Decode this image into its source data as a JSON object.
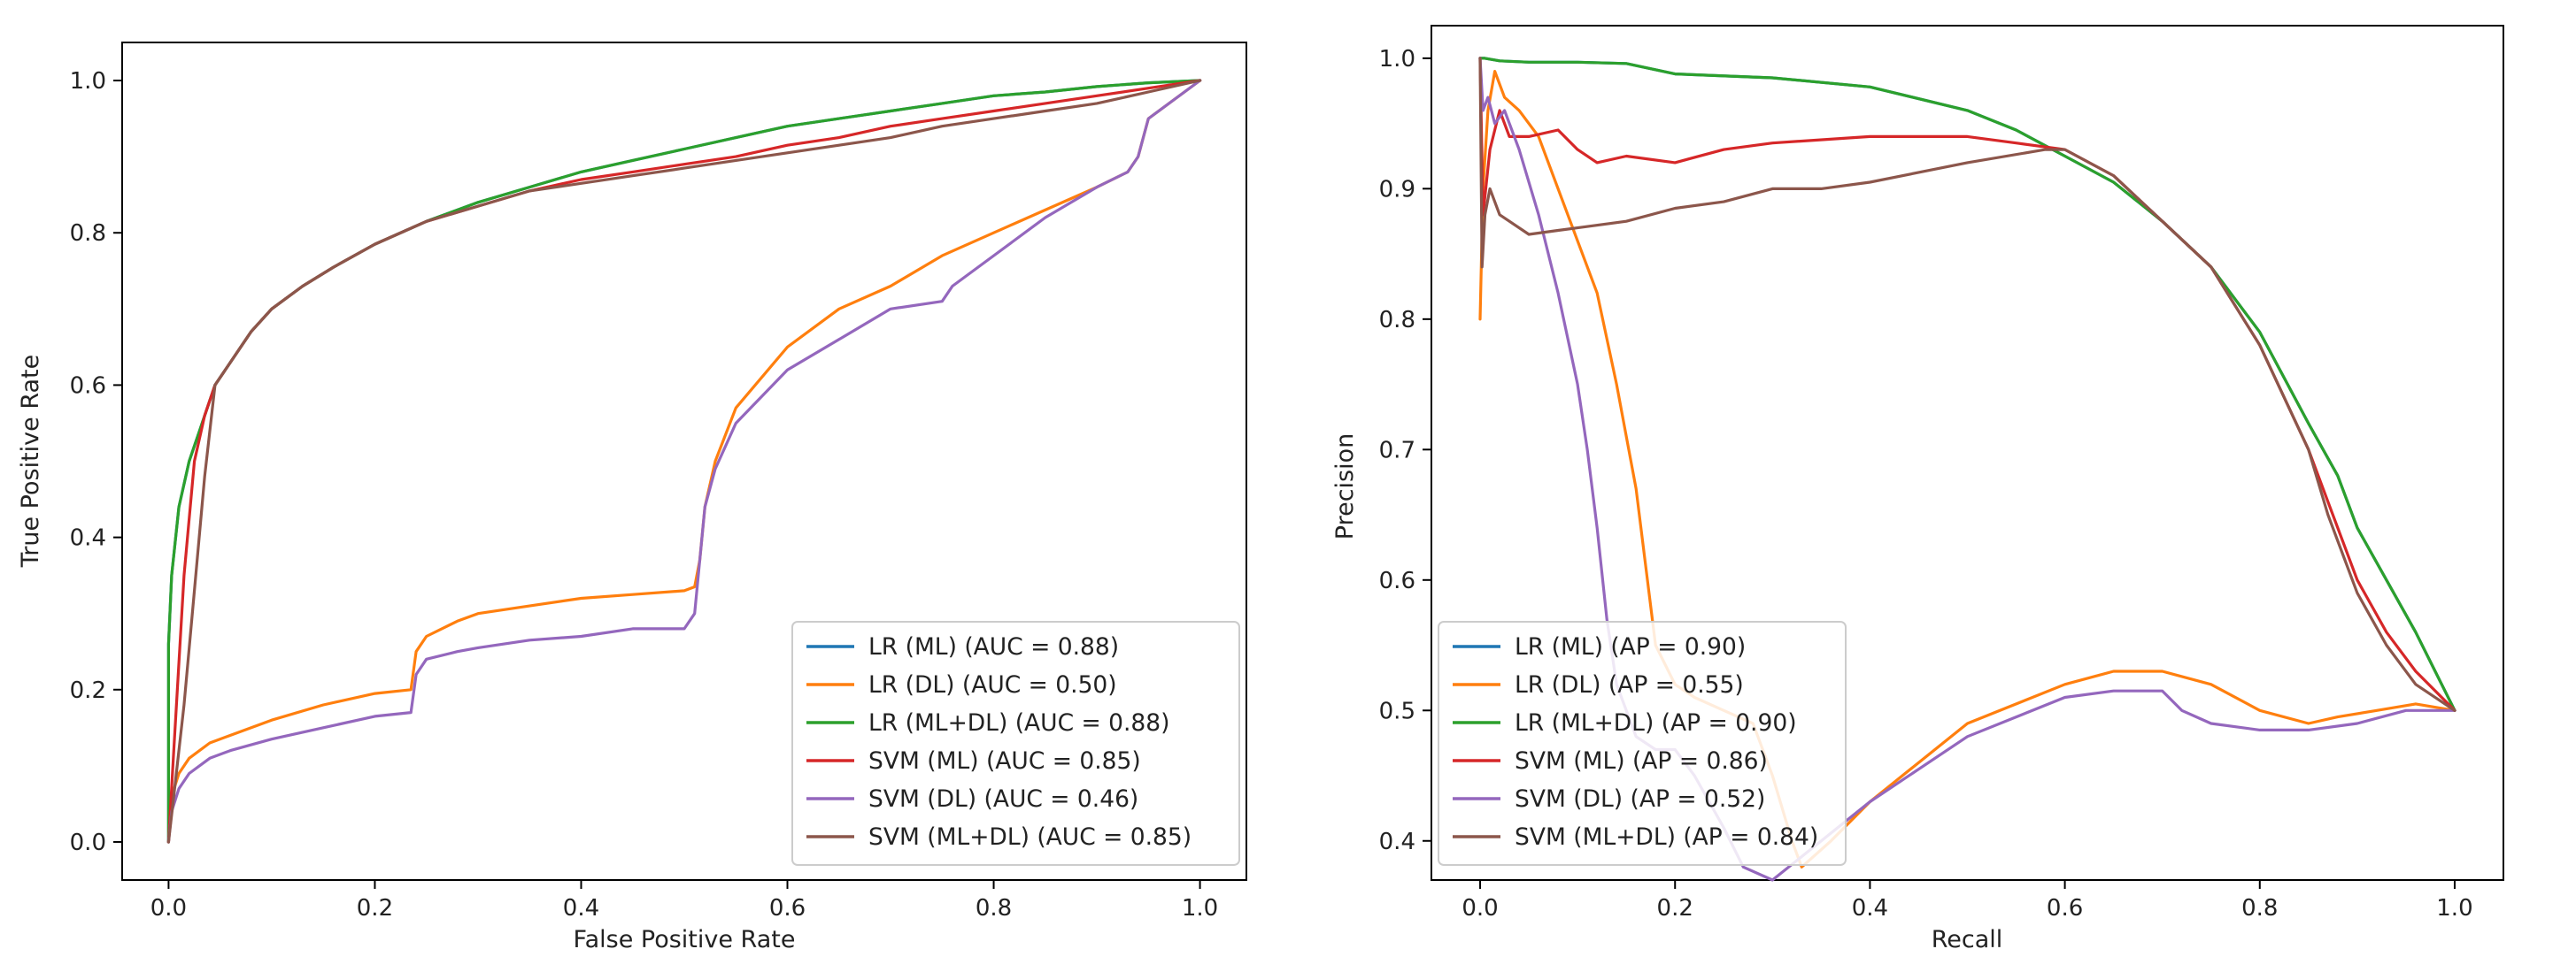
{
  "chart_data": [
    {
      "type": "line",
      "title": "",
      "xlabel": "False Positive Rate",
      "ylabel": "True Positive Rate",
      "xlim": [
        -0.045,
        1.045
      ],
      "ylim": [
        -0.05,
        1.05
      ],
      "xticks": [
        0.0,
        0.2,
        0.4,
        0.6,
        0.8,
        1.0
      ],
      "yticks": [
        0.0,
        0.2,
        0.4,
        0.6,
        0.8,
        1.0
      ],
      "xtick_labels": [
        "0.0",
        "0.2",
        "0.4",
        "0.6",
        "0.8",
        "1.0"
      ],
      "ytick_labels": [
        "0.0",
        "0.2",
        "0.4",
        "0.6",
        "0.8",
        "1.0"
      ],
      "grid": false,
      "legend_position": "lower-right",
      "series": [
        {
          "name": "LR (ML) (AUC = 0.88)",
          "color": "#1f77b4",
          "x": [
            0,
            0,
            0.003,
            0.01,
            0.02,
            0.03,
            0.045,
            0.06,
            0.08,
            0.1,
            0.13,
            0.16,
            0.2,
            0.25,
            0.3,
            0.35,
            0.4,
            0.45,
            0.5,
            0.55,
            0.6,
            0.65,
            0.7,
            0.75,
            0.8,
            0.85,
            0.9,
            0.95,
            1.0
          ],
          "y": [
            0,
            0.26,
            0.35,
            0.44,
            0.5,
            0.54,
            0.6,
            0.63,
            0.67,
            0.7,
            0.73,
            0.755,
            0.785,
            0.815,
            0.84,
            0.86,
            0.88,
            0.895,
            0.91,
            0.925,
            0.94,
            0.95,
            0.96,
            0.97,
            0.98,
            0.985,
            0.992,
            0.997,
            1.0
          ]
        },
        {
          "name": "LR (DL) (AUC = 0.50)",
          "color": "#ff7f0e",
          "x": [
            0,
            0.003,
            0.01,
            0.02,
            0.04,
            0.06,
            0.1,
            0.15,
            0.2,
            0.235,
            0.24,
            0.25,
            0.28,
            0.3,
            0.35,
            0.4,
            0.45,
            0.5,
            0.51,
            0.515,
            0.52,
            0.53,
            0.55,
            0.6,
            0.65,
            0.7,
            0.75,
            0.8,
            0.85,
            0.9,
            0.93,
            0.94,
            0.95,
            1.0
          ],
          "y": [
            0,
            0.06,
            0.09,
            0.11,
            0.13,
            0.14,
            0.16,
            0.18,
            0.195,
            0.2,
            0.25,
            0.27,
            0.29,
            0.3,
            0.31,
            0.32,
            0.325,
            0.33,
            0.335,
            0.37,
            0.44,
            0.5,
            0.57,
            0.65,
            0.7,
            0.73,
            0.77,
            0.8,
            0.83,
            0.86,
            0.88,
            0.9,
            0.95,
            1.0
          ]
        },
        {
          "name": "LR (ML+DL) (AUC = 0.88)",
          "color": "#2ca02c",
          "x": [
            0,
            0,
            0.003,
            0.01,
            0.02,
            0.03,
            0.045,
            0.06,
            0.08,
            0.1,
            0.13,
            0.16,
            0.2,
            0.25,
            0.3,
            0.35,
            0.4,
            0.45,
            0.5,
            0.55,
            0.6,
            0.65,
            0.7,
            0.75,
            0.8,
            0.85,
            0.9,
            0.95,
            1.0
          ],
          "y": [
            0,
            0.26,
            0.35,
            0.44,
            0.5,
            0.54,
            0.6,
            0.63,
            0.67,
            0.7,
            0.73,
            0.755,
            0.785,
            0.815,
            0.84,
            0.86,
            0.88,
            0.895,
            0.91,
            0.925,
            0.94,
            0.95,
            0.96,
            0.97,
            0.98,
            0.985,
            0.992,
            0.997,
            1.0
          ]
        },
        {
          "name": "SVM (ML) (AUC = 0.85)",
          "color": "#d62728",
          "x": [
            0,
            0.005,
            0.015,
            0.025,
            0.035,
            0.045,
            0.06,
            0.08,
            0.1,
            0.13,
            0.16,
            0.2,
            0.25,
            0.3,
            0.35,
            0.4,
            0.45,
            0.5,
            0.55,
            0.6,
            0.65,
            0.7,
            0.75,
            0.8,
            0.85,
            0.9,
            0.95,
            1.0
          ],
          "y": [
            0,
            0.12,
            0.35,
            0.5,
            0.56,
            0.6,
            0.63,
            0.67,
            0.7,
            0.73,
            0.755,
            0.785,
            0.815,
            0.835,
            0.855,
            0.87,
            0.88,
            0.89,
            0.9,
            0.915,
            0.925,
            0.94,
            0.95,
            0.96,
            0.97,
            0.98,
            0.99,
            1.0
          ]
        },
        {
          "name": "SVM (DL) (AUC = 0.46)",
          "color": "#9467bd",
          "x": [
            0,
            0.003,
            0.01,
            0.02,
            0.04,
            0.06,
            0.1,
            0.15,
            0.2,
            0.235,
            0.24,
            0.25,
            0.28,
            0.3,
            0.35,
            0.4,
            0.45,
            0.5,
            0.51,
            0.52,
            0.53,
            0.55,
            0.6,
            0.65,
            0.7,
            0.75,
            0.76,
            0.8,
            0.85,
            0.9,
            0.93,
            0.94,
            0.95,
            1.0
          ],
          "y": [
            0,
            0.04,
            0.07,
            0.09,
            0.11,
            0.12,
            0.135,
            0.15,
            0.165,
            0.17,
            0.22,
            0.24,
            0.25,
            0.255,
            0.265,
            0.27,
            0.28,
            0.28,
            0.3,
            0.44,
            0.49,
            0.55,
            0.62,
            0.66,
            0.7,
            0.71,
            0.73,
            0.77,
            0.82,
            0.86,
            0.88,
            0.9,
            0.95,
            1.0
          ]
        },
        {
          "name": "SVM (ML+DL) (AUC = 0.85)",
          "color": "#8c564b",
          "x": [
            0,
            0.005,
            0.015,
            0.025,
            0.035,
            0.045,
            0.06,
            0.08,
            0.1,
            0.13,
            0.16,
            0.2,
            0.25,
            0.3,
            0.35,
            0.4,
            0.45,
            0.5,
            0.55,
            0.6,
            0.65,
            0.7,
            0.75,
            0.8,
            0.85,
            0.9,
            0.95,
            1.0
          ],
          "y": [
            0,
            0.06,
            0.18,
            0.33,
            0.48,
            0.6,
            0.63,
            0.67,
            0.7,
            0.73,
            0.755,
            0.785,
            0.815,
            0.835,
            0.855,
            0.865,
            0.875,
            0.885,
            0.895,
            0.905,
            0.915,
            0.925,
            0.94,
            0.95,
            0.96,
            0.97,
            0.985,
            1.0
          ]
        }
      ]
    },
    {
      "type": "line",
      "title": "",
      "xlabel": "Recall",
      "ylabel": "Precision",
      "xlim": [
        -0.05,
        1.05
      ],
      "ylim": [
        0.37,
        1.025
      ],
      "xticks": [
        0.0,
        0.2,
        0.4,
        0.6,
        0.8,
        1.0
      ],
      "yticks": [
        0.4,
        0.5,
        0.6,
        0.7,
        0.8,
        0.9,
        1.0
      ],
      "xtick_labels": [
        "0.0",
        "0.2",
        "0.4",
        "0.6",
        "0.8",
        "1.0"
      ],
      "ytick_labels": [
        "0.4",
        "0.5",
        "0.6",
        "0.7",
        "0.8",
        "0.9",
        "1.0"
      ],
      "grid": false,
      "legend_position": "lower-left",
      "series": [
        {
          "name": "LR (ML) (AP = 0.90)",
          "color": "#1f77b4",
          "x": [
            0,
            0.005,
            0.02,
            0.05,
            0.1,
            0.15,
            0.2,
            0.3,
            0.4,
            0.5,
            0.55,
            0.6,
            0.65,
            0.7,
            0.75,
            0.8,
            0.85,
            0.88,
            0.9,
            0.93,
            0.96,
            0.98,
            1.0
          ],
          "y": [
            1.0,
            1.0,
            0.998,
            0.997,
            0.997,
            0.996,
            0.988,
            0.985,
            0.978,
            0.96,
            0.945,
            0.925,
            0.905,
            0.875,
            0.84,
            0.79,
            0.72,
            0.68,
            0.64,
            0.6,
            0.56,
            0.53,
            0.5
          ]
        },
        {
          "name": "LR (DL) (AP = 0.55)",
          "color": "#ff7f0e",
          "x": [
            0,
            0.003,
            0.008,
            0.015,
            0.025,
            0.04,
            0.06,
            0.08,
            0.1,
            0.12,
            0.14,
            0.16,
            0.18,
            0.2,
            0.22,
            0.25,
            0.28,
            0.3,
            0.32,
            0.33,
            0.36,
            0.4,
            0.5,
            0.6,
            0.65,
            0.7,
            0.75,
            0.8,
            0.85,
            0.88,
            0.92,
            0.96,
            1.0
          ],
          "y": [
            0.8,
            0.9,
            0.96,
            0.99,
            0.97,
            0.96,
            0.94,
            0.9,
            0.86,
            0.82,
            0.75,
            0.67,
            0.55,
            0.52,
            0.51,
            0.5,
            0.49,
            0.45,
            0.4,
            0.38,
            0.4,
            0.43,
            0.49,
            0.52,
            0.53,
            0.53,
            0.52,
            0.5,
            0.49,
            0.495,
            0.5,
            0.505,
            0.5
          ]
        },
        {
          "name": "LR (ML+DL) (AP = 0.90)",
          "color": "#2ca02c",
          "x": [
            0,
            0.005,
            0.02,
            0.05,
            0.1,
            0.15,
            0.2,
            0.3,
            0.4,
            0.5,
            0.55,
            0.6,
            0.65,
            0.7,
            0.75,
            0.8,
            0.85,
            0.88,
            0.9,
            0.93,
            0.96,
            0.98,
            1.0
          ],
          "y": [
            1.0,
            1.0,
            0.998,
            0.997,
            0.997,
            0.996,
            0.988,
            0.985,
            0.978,
            0.96,
            0.945,
            0.925,
            0.905,
            0.875,
            0.84,
            0.79,
            0.72,
            0.68,
            0.64,
            0.6,
            0.56,
            0.53,
            0.5
          ]
        },
        {
          "name": "SVM (ML) (AP = 0.86)",
          "color": "#d62728",
          "x": [
            0,
            0.003,
            0.01,
            0.02,
            0.03,
            0.05,
            0.08,
            0.1,
            0.12,
            0.15,
            0.2,
            0.25,
            0.3,
            0.4,
            0.5,
            0.55,
            0.6,
            0.65,
            0.7,
            0.75,
            0.8,
            0.85,
            0.87,
            0.9,
            0.93,
            0.96,
            1.0
          ],
          "y": [
            1.0,
            0.88,
            0.93,
            0.96,
            0.94,
            0.94,
            0.945,
            0.93,
            0.92,
            0.925,
            0.92,
            0.93,
            0.935,
            0.94,
            0.94,
            0.935,
            0.93,
            0.91,
            0.875,
            0.84,
            0.78,
            0.7,
            0.66,
            0.6,
            0.56,
            0.53,
            0.5
          ]
        },
        {
          "name": "SVM (DL) (AP = 0.52)",
          "color": "#9467bd",
          "x": [
            0,
            0.003,
            0.008,
            0.015,
            0.025,
            0.04,
            0.06,
            0.08,
            0.1,
            0.11,
            0.12,
            0.13,
            0.14,
            0.16,
            0.18,
            0.2,
            0.22,
            0.25,
            0.27,
            0.3,
            0.35,
            0.4,
            0.5,
            0.6,
            0.65,
            0.7,
            0.72,
            0.75,
            0.8,
            0.85,
            0.9,
            0.95,
            1.0
          ],
          "y": [
            1.0,
            0.96,
            0.97,
            0.95,
            0.96,
            0.93,
            0.88,
            0.82,
            0.75,
            0.7,
            0.64,
            0.57,
            0.52,
            0.48,
            0.47,
            0.47,
            0.45,
            0.41,
            0.38,
            0.37,
            0.4,
            0.43,
            0.48,
            0.51,
            0.515,
            0.515,
            0.5,
            0.49,
            0.485,
            0.485,
            0.49,
            0.5,
            0.5
          ]
        },
        {
          "name": "SVM (ML+DL) (AP = 0.84)",
          "color": "#8c564b",
          "x": [
            0,
            0.002,
            0.005,
            0.01,
            0.02,
            0.03,
            0.05,
            0.08,
            0.1,
            0.15,
            0.2,
            0.25,
            0.3,
            0.35,
            0.4,
            0.5,
            0.58,
            0.6,
            0.65,
            0.7,
            0.75,
            0.8,
            0.85,
            0.87,
            0.9,
            0.93,
            0.96,
            1.0
          ],
          "y": [
            1.0,
            0.84,
            0.88,
            0.9,
            0.88,
            0.875,
            0.865,
            0.868,
            0.87,
            0.875,
            0.885,
            0.89,
            0.9,
            0.9,
            0.905,
            0.92,
            0.93,
            0.93,
            0.91,
            0.875,
            0.84,
            0.78,
            0.7,
            0.65,
            0.59,
            0.55,
            0.52,
            0.5
          ]
        }
      ]
    }
  ]
}
